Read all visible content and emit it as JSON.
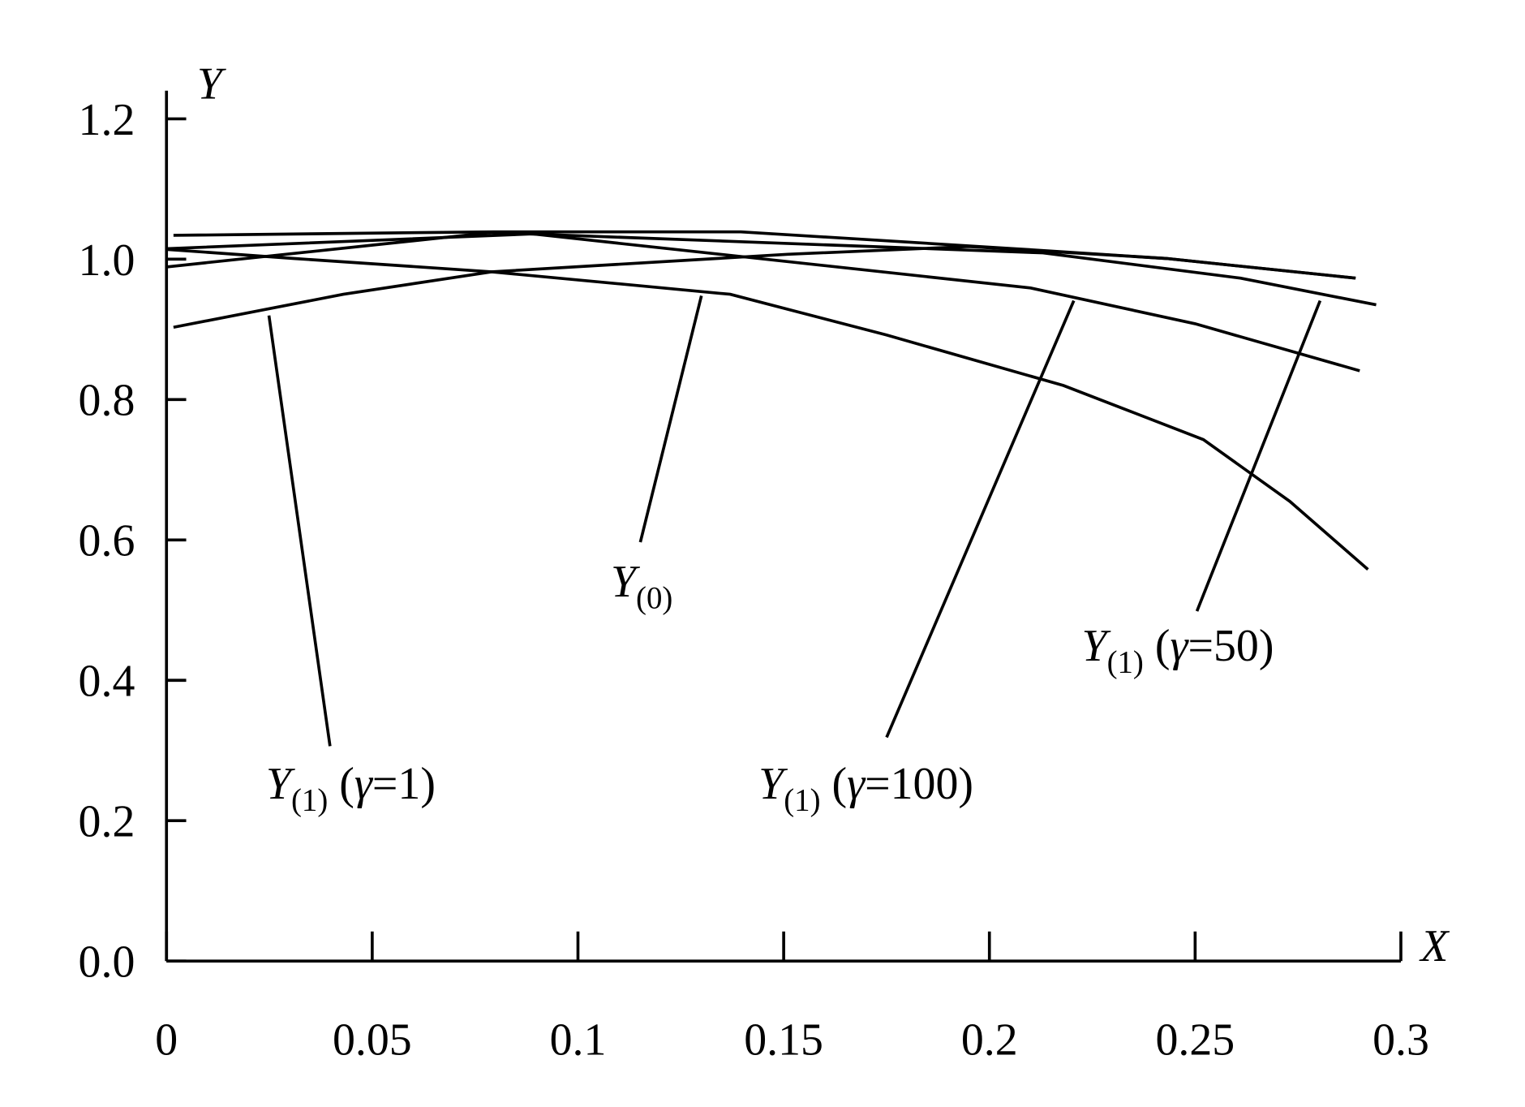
{
  "chart_data": {
    "type": "line",
    "x_label": "X",
    "y_label": "Y",
    "xlim": [
      0,
      0.3
    ],
    "ylim": [
      0,
      1.24
    ],
    "xticks": [
      0,
      0.05,
      0.1,
      0.15,
      0.2,
      0.25,
      0.3
    ],
    "yticks": [
      {
        "value": 0,
        "label": "0.0"
      },
      0.2,
      0.4,
      0.6,
      0.8,
      {
        "value": 1,
        "label": "1.0"
      },
      1.2
    ],
    "series": [
      {
        "color": "#000000",
        "x": [
          0.0017,
          0.0795,
          0.1396,
          0.206,
          0.243,
          0.289
        ],
        "values": [
          1.034,
          1.039,
          1.039,
          1.015,
          1.001,
          0.973
        ]
      },
      {
        "name": "Y(0)",
        "color": "#000000",
        "x": [
          0,
          0.031,
          0.079,
          0.137,
          0.175,
          0.218,
          0.252,
          0.273,
          0.292
        ],
        "values": [
          1.014,
          1.001,
          0.982,
          0.95,
          0.892,
          0.82,
          0.743,
          0.655,
          0.558
        ]
      },
      {
        "name": "Y(1) (γ=100)",
        "color": "#000000",
        "x": [
          0,
          0.089,
          0.21,
          0.25,
          0.29
        ],
        "values": [
          1.015,
          1.036,
          0.959,
          0.908,
          0.841
        ]
      },
      {
        "name": "Y(1) (γ=50)",
        "color": "#000000",
        "x": [
          0,
          0.079,
          0.213,
          0.261,
          0.294
        ],
        "values": [
          0.989,
          1.038,
          1.009,
          0.973,
          0.935
        ]
      },
      {
        "name": "Y(1) (γ=1)",
        "color": "#000000",
        "x": [
          0.0017,
          0.043,
          0.079,
          0.151,
          0.195,
          0.243,
          0.289
        ],
        "values": [
          0.903,
          0.95,
          0.982,
          1.007,
          1.018,
          1.001,
          0.973
        ]
      }
    ],
    "annotations": [
      {
        "text": "Y",
        "sub": "(0)"
      },
      {
        "text": "Y",
        "sub": "(1)",
        "open": " (",
        "symbol": "γ",
        "close": "=1)"
      },
      {
        "text": "Y",
        "sub": "(1)",
        "open": " (",
        "symbol": "γ",
        "close": "=100)"
      },
      {
        "text": "Y",
        "sub": "(1)",
        "open": " (",
        "symbol": "γ",
        "close": "=50)"
      }
    ]
  }
}
